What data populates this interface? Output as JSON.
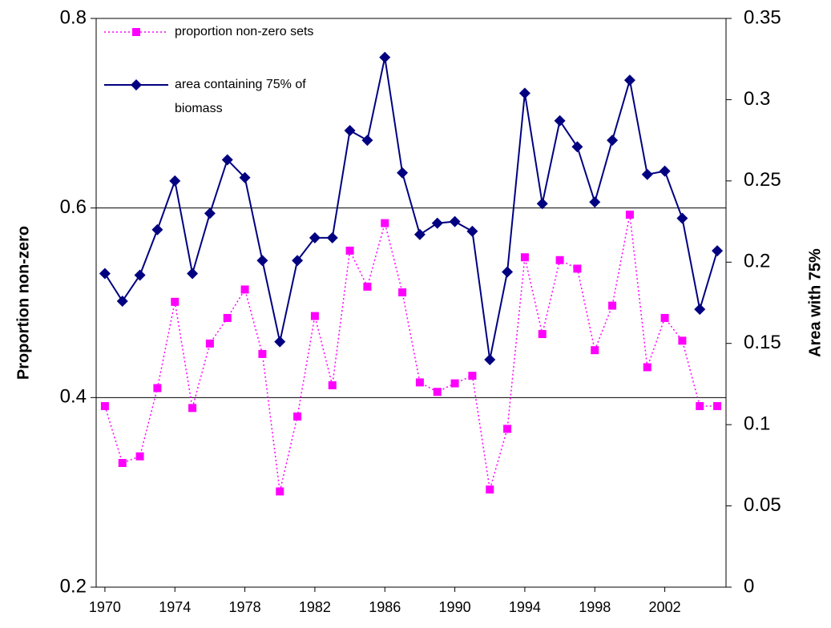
{
  "chart_data": {
    "type": "line",
    "x": [
      1970,
      1971,
      1972,
      1973,
      1974,
      1975,
      1976,
      1977,
      1978,
      1979,
      1980,
      1981,
      1982,
      1983,
      1984,
      1985,
      1986,
      1987,
      1988,
      1989,
      1990,
      1991,
      1992,
      1993,
      1994,
      1995,
      1996,
      1997,
      1998,
      1999,
      2000,
      2001,
      2002,
      2003,
      2004,
      2005
    ],
    "xlim": [
      1969.5,
      2005.5
    ],
    "xticks": [
      1970,
      1974,
      1978,
      1982,
      1986,
      1990,
      1994,
      1998,
      2002
    ],
    "ylabel": "Proportion non-zero",
    "y2label": "Area with 75%",
    "ylim": [
      0.2,
      0.8
    ],
    "yticks": [
      0.2,
      0.4,
      0.6,
      0.8
    ],
    "y2lim": [
      0,
      0.35
    ],
    "y2ticks": [
      0,
      0.05,
      0.1,
      0.15,
      0.2,
      0.25,
      0.3,
      0.35
    ],
    "grid": true,
    "legend": "upper left",
    "series": [
      {
        "name": "proportion non-zero sets",
        "color": "#ff00ff",
        "marker": "square",
        "linestyle": "dotted",
        "values": [
          0.391,
          0.331,
          0.338,
          0.41,
          0.501,
          0.389,
          0.457,
          0.484,
          0.514,
          0.446,
          0.301,
          0.38,
          0.486,
          0.413,
          0.555,
          0.517,
          0.584,
          0.511,
          0.416,
          0.406,
          0.415,
          0.423,
          0.303,
          0.367,
          0.548,
          0.467,
          0.545,
          0.536,
          0.45,
          0.497,
          0.593,
          0.432,
          0.484,
          0.46,
          0.391,
          0.391
        ]
      },
      {
        "name": "area containing 75% of biomass",
        "color": "#000080",
        "marker": "diamond",
        "linestyle": "solid",
        "axis": "y2",
        "values": [
          0.193,
          0.176,
          0.192,
          0.22,
          0.25,
          0.193,
          0.23,
          0.263,
          0.252,
          0.201,
          0.151,
          0.201,
          0.215,
          0.215,
          0.281,
          0.275,
          0.326,
          0.255,
          0.217,
          0.224,
          0.225,
          0.219,
          0.14,
          0.194,
          0.304,
          0.236,
          0.287,
          0.271,
          0.237,
          0.275,
          0.312,
          0.254,
          0.256,
          0.227,
          0.171,
          0.207
        ]
      }
    ]
  }
}
